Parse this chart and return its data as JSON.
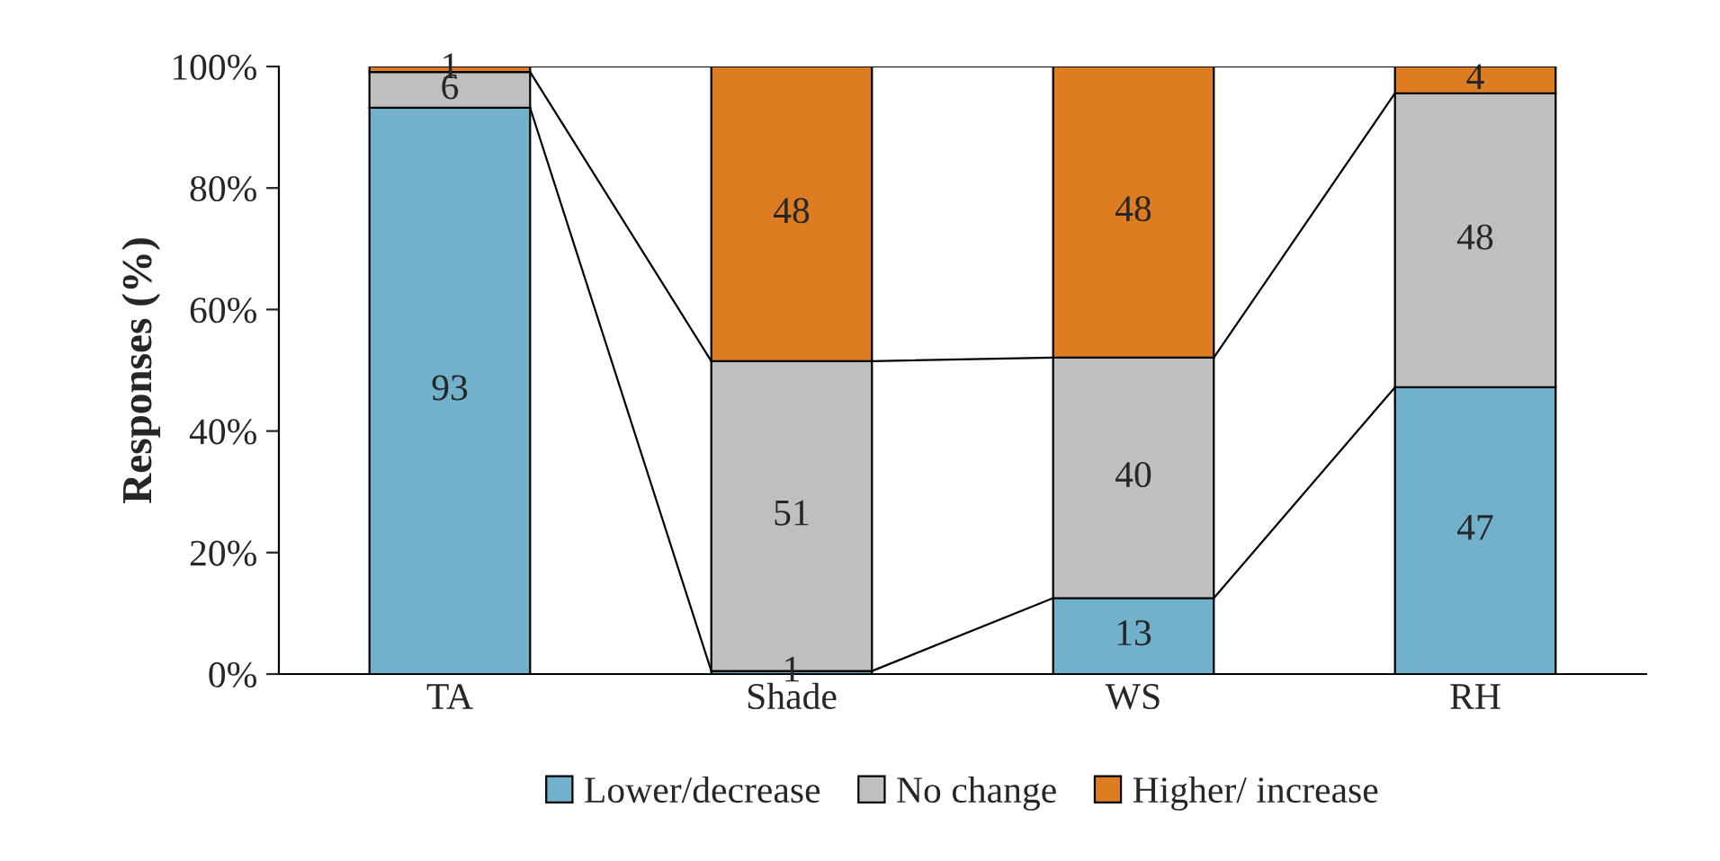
{
  "chart_data": {
    "type": "bar",
    "stacked": true,
    "ylabel": "Responses (%)",
    "categories": [
      "TA",
      "Shade",
      "WS",
      "RH"
    ],
    "series": [
      {
        "name": "Lower/decrease",
        "color": "#72b1cb",
        "values": [
          93.2,
          0.5,
          12.5,
          47.2
        ],
        "value_labels": [
          "93",
          "1",
          "13",
          "47"
        ]
      },
      {
        "name": "No change",
        "color": "#bfbfbf",
        "values": [
          5.9,
          51,
          39.6,
          48.4
        ],
        "value_labels": [
          "6",
          "51",
          "40",
          "48"
        ]
      },
      {
        "name": "Higher/ increase",
        "color": "#de7c22",
        "values": [
          0.9,
          48.5,
          47.9,
          4.4
        ],
        "value_labels": [
          "1",
          "48",
          "48",
          "4"
        ]
      }
    ],
    "ylim": [
      0,
      100
    ],
    "yticks": [
      {
        "value": 0,
        "label": "0%"
      },
      {
        "value": 20,
        "label": "20%"
      },
      {
        "value": 40,
        "label": "40%"
      },
      {
        "value": 60,
        "label": "60%"
      },
      {
        "value": 80,
        "label": "80%"
      },
      {
        "value": 100,
        "label": "100%"
      }
    ],
    "grid": false,
    "legend": "bottom"
  }
}
